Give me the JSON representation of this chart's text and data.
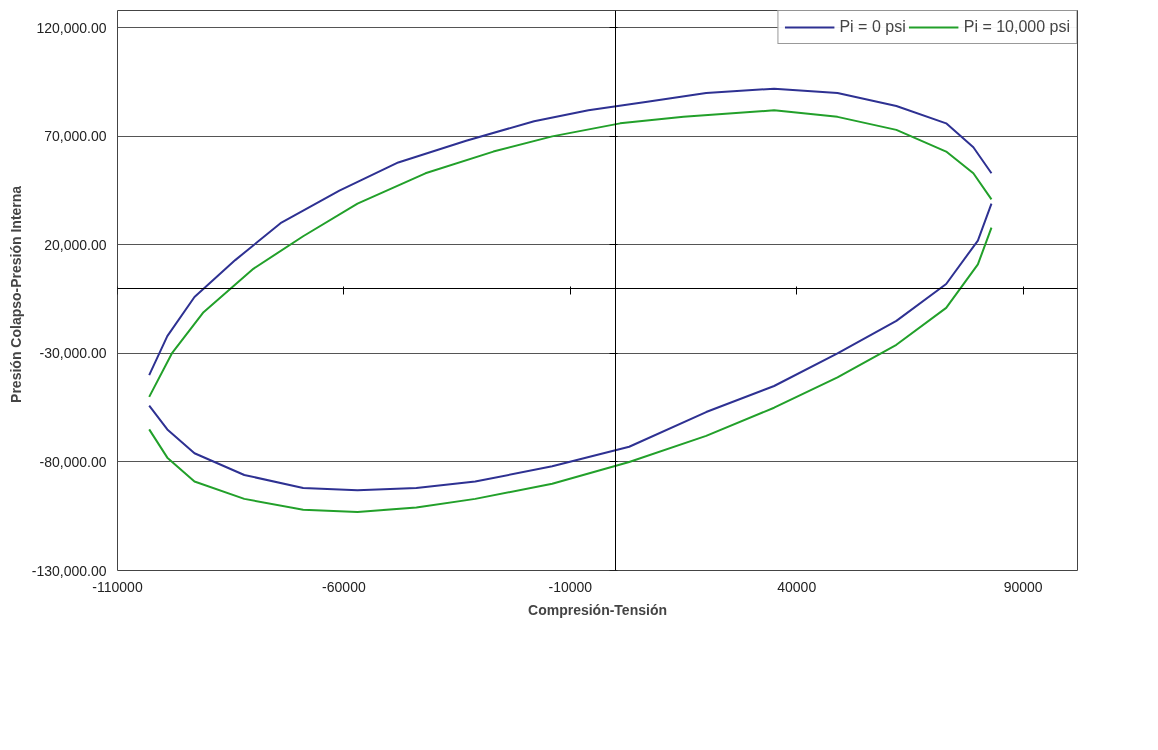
{
  "chart_data": {
    "type": "line",
    "xlabel": "Compresión-Tensión",
    "ylabel": "Presión  Colapso-Presión  Interna",
    "xlim": [
      -110000,
      102000
    ],
    "ylim": [
      -130000,
      128000
    ],
    "xticks": [
      -110000,
      -60000,
      -10000,
      40000,
      90000
    ],
    "yticks": [
      {
        "value": 120000,
        "label": "120,000.00"
      },
      {
        "value": 70000,
        "label": "70,000.00"
      },
      {
        "value": 20000,
        "label": "20,000.00"
      },
      {
        "value": -30000,
        "label": "-30,000.00"
      },
      {
        "value": -80000,
        "label": "-80,000.00"
      },
      {
        "value": -130000,
        "label": "-130,000.00"
      }
    ],
    "grid": "y",
    "legend": "top right",
    "marker": "none",
    "line_style": "solid",
    "series": [
      {
        "name": "Pi = 0 psi",
        "color": "#2e3192",
        "x": [
          -103000,
          -99000,
          -93000,
          -84000,
          -74000,
          -61000,
          -48000,
          -33000,
          -18000,
          -6000,
          7000,
          20000,
          35000,
          49000,
          62000,
          73000,
          79000,
          83000
        ],
        "values": [
          -40000,
          -22000,
          -4000,
          13000,
          30000,
          45000,
          58000,
          68000,
          77000,
          82000,
          86000,
          90000,
          92000,
          90000,
          84000,
          76000,
          65000,
          53000
        ]
      },
      {
        "color": "#2e3192",
        "x": [
          83000,
          80000,
          73000,
          62000,
          49000,
          35000,
          20000,
          3000,
          -14000,
          -31000,
          -44000,
          -57000,
          -69000,
          -82000,
          -93000,
          -99000,
          -103000
        ],
        "values": [
          39000,
          22000,
          2000,
          -15000,
          -30000,
          -45000,
          -57000,
          -73000,
          -82000,
          -89000,
          -92000,
          -93000,
          -92000,
          -86000,
          -76000,
          -65000,
          -54000
        ]
      },
      {
        "name": "Pi = 10,000 psi",
        "color": "#22a02a",
        "x": [
          -103000,
          -98000,
          -91000,
          -80000,
          -69000,
          -57000,
          -42000,
          -27000,
          -14000,
          1000,
          15000,
          35000,
          49000,
          62000,
          73000,
          79000,
          83000
        ],
        "values": [
          -50000,
          -30000,
          -11000,
          9000,
          24000,
          39000,
          53000,
          63000,
          70000,
          76000,
          79000,
          82000,
          79000,
          73000,
          63000,
          53000,
          41000
        ]
      },
      {
        "color": "#22a02a",
        "x": [
          83000,
          80000,
          73000,
          62000,
          49000,
          35000,
          20000,
          3000,
          -14000,
          -31000,
          -44000,
          -57000,
          -69000,
          -82000,
          -93000,
          -99000,
          -103000
        ],
        "values": [
          28000,
          11000,
          -9000,
          -26000,
          -41000,
          -55000,
          -68000,
          -80000,
          -90000,
          -97000,
          -101000,
          -103000,
          -102000,
          -97000,
          -89000,
          -78000,
          -65000
        ]
      }
    ]
  }
}
